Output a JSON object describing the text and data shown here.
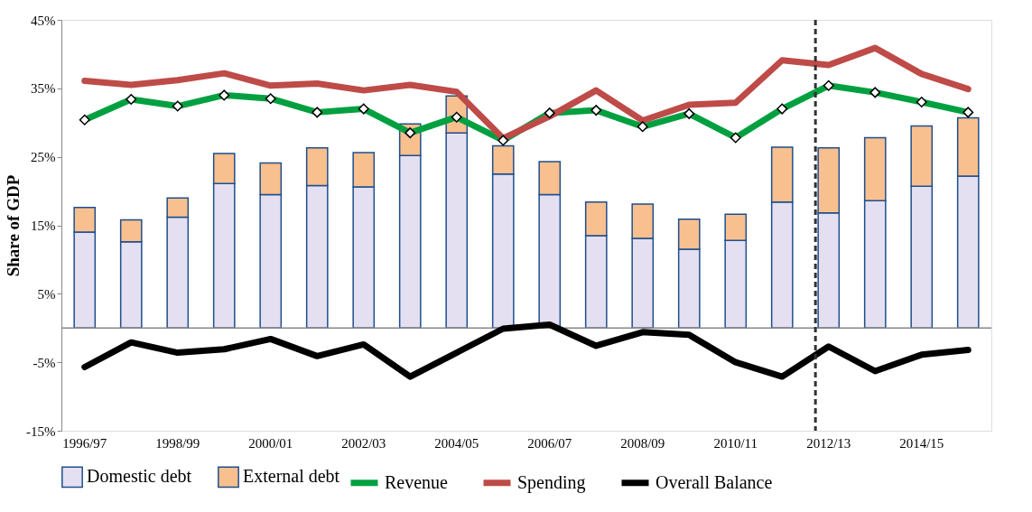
{
  "chart_data": {
    "type": "bar",
    "stacked": true,
    "ylabel": "Share of GDP",
    "categories": [
      "1996/97",
      null,
      "1998/99",
      null,
      "2000/01",
      null,
      "2002/03",
      null,
      "2004/05",
      null,
      "2006/07",
      null,
      "2008/09",
      null,
      "2010/11",
      null,
      "2012/13",
      null,
      "2014/15",
      null
    ],
    "series": [
      {
        "name": "Domestic debt",
        "color": "#e4e0f2",
        "values": [
          14.0,
          12.6,
          16.2,
          21.1,
          19.5,
          20.8,
          20.6,
          25.2,
          28.5,
          22.5,
          19.5,
          13.5,
          13.1,
          11.5,
          12.8,
          18.4,
          16.8,
          18.6,
          20.7,
          22.2
        ]
      },
      {
        "name": "External debt",
        "color": "#f8c08f",
        "values": [
          3.6,
          3.2,
          2.8,
          4.4,
          4.6,
          5.5,
          5.0,
          4.6,
          5.4,
          4.1,
          4.8,
          4.9,
          5.0,
          4.4,
          3.8,
          8.0,
          9.5,
          9.2,
          8.8,
          8.5
        ]
      },
      {
        "name": "Revenue",
        "type": "line",
        "color": "#00a040",
        "marker": "diamond",
        "values": [
          30.4,
          33.4,
          32.4,
          34.0,
          33.5,
          31.5,
          32.0,
          28.5,
          30.8,
          27.4,
          31.4,
          31.8,
          29.4,
          31.3,
          27.8,
          32.0,
          35.4,
          34.4,
          33.0,
          31.5
        ]
      },
      {
        "name": "Spending",
        "type": "line",
        "color": "#be4b48",
        "values": [
          36.1,
          35.5,
          36.2,
          37.2,
          35.4,
          35.7,
          34.7,
          35.5,
          34.5,
          27.7,
          30.9,
          34.7,
          30.3,
          32.6,
          32.9,
          39.1,
          38.4,
          40.9,
          37.1,
          34.9
        ]
      },
      {
        "name": "Overall Balance",
        "type": "line",
        "color": "#000000",
        "values": [
          -5.7,
          -2.1,
          -3.6,
          -3.1,
          -1.6,
          -4.1,
          -2.4,
          -7.1,
          -3.6,
          -0.1,
          0.5,
          -2.6,
          -0.6,
          -1.0,
          -5.0,
          -7.1,
          -2.7,
          -6.3,
          -3.9,
          -3.2
        ]
      }
    ],
    "ylim": [
      -15,
      45
    ],
    "yticks": [
      {
        "value": -15,
        "label": "-15%"
      },
      {
        "value": -5,
        "label": "-5%"
      },
      {
        "value": 5,
        "label": "5%"
      },
      {
        "value": 15,
        "label": "15%"
      },
      {
        "value": 25,
        "label": "25%"
      },
      {
        "value": 35,
        "label": "35%"
      },
      {
        "value": 45,
        "label": "45%"
      }
    ],
    "ref_lines": [
      {
        "axis": "x",
        "value": "2012/13",
        "color": "#333333",
        "line_style": "dashed"
      }
    ],
    "grid": false,
    "legend": "bottom"
  }
}
